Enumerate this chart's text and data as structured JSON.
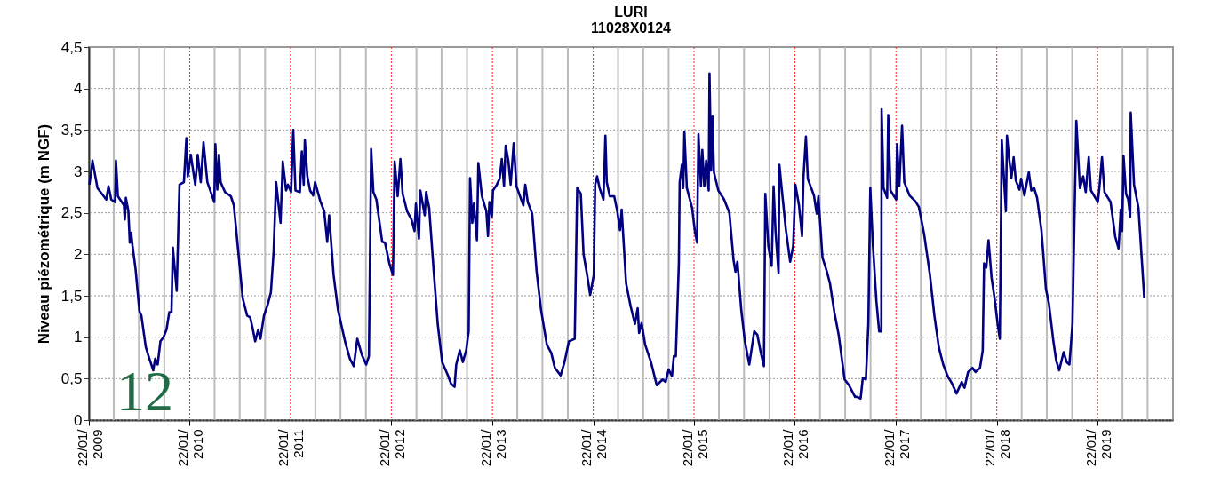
{
  "chart_data": {
    "type": "line",
    "title": "LURI",
    "subtitle": "11028X0124",
    "ylabel": "Niveau piézométrique (m NGF)",
    "annotations": [
      "12"
    ],
    "x": [
      "2009-01-24",
      "2009-02-04",
      "2009-02-22",
      "2009-03-26",
      "2009-04-03",
      "2009-04-13",
      "2009-04-27",
      "2009-04-30",
      "2009-05-07",
      "2009-05-29",
      "2009-06-01",
      "2009-06-05",
      "2009-06-14",
      "2009-06-19",
      "2009-06-24",
      "2009-06-29",
      "2009-07-10",
      "2009-07-24",
      "2009-07-31",
      "2009-08-16",
      "2009-08-29",
      "2009-09-12",
      "2009-09-19",
      "2009-09-28",
      "2009-10-08",
      "2009-10-19",
      "2009-10-30",
      "2009-11-09",
      "2009-11-17",
      "2009-11-22",
      "2009-12-06",
      "2009-12-16",
      "2010-01-01",
      "2010-01-10",
      "2010-01-15",
      "2010-01-26",
      "2010-02-11",
      "2010-02-20",
      "2010-03-03",
      "2010-03-13",
      "2010-03-27",
      "2010-04-21",
      "2010-04-25",
      "2010-05-02",
      "2010-05-08",
      "2010-05-14",
      "2010-05-30",
      "2010-06-20",
      "2010-07-01",
      "2010-07-17",
      "2010-08-02",
      "2010-08-18",
      "2010-08-29",
      "2010-09-08",
      "2010-09-16",
      "2010-09-27",
      "2010-10-05",
      "2010-10-18",
      "2010-11-01",
      "2010-11-12",
      "2010-11-22",
      "2010-12-01",
      "2010-12-17",
      "2010-12-25",
      "2011-01-06",
      "2011-01-13",
      "2011-01-24",
      "2011-02-01",
      "2011-02-09",
      "2011-02-25",
      "2011-03-04",
      "2011-03-11",
      "2011-03-15",
      "2011-03-24",
      "2011-04-03",
      "2011-04-14",
      "2011-04-21",
      "2011-05-10",
      "2011-05-24",
      "2011-06-04",
      "2011-06-11",
      "2011-06-27",
      "2011-07-13",
      "2011-07-29",
      "2011-08-09",
      "2011-08-25",
      "2011-09-08",
      "2011-09-21",
      "2011-10-07",
      "2011-10-23",
      "2011-11-02",
      "2011-11-10",
      "2011-11-18",
      "2011-11-29",
      "2011-12-20",
      "2011-12-30",
      "2012-01-15",
      "2012-01-28",
      "2012-02-03",
      "2012-02-14",
      "2012-02-24",
      "2012-03-03",
      "2012-03-19",
      "2012-04-04",
      "2012-04-15",
      "2012-04-20",
      "2012-05-01",
      "2012-05-06",
      "2012-05-22",
      "2012-05-27",
      "2012-06-07",
      "2012-06-23",
      "2012-07-08",
      "2012-07-24",
      "2012-08-15",
      "2012-08-25",
      "2012-09-07",
      "2012-09-13",
      "2012-09-26",
      "2012-10-07",
      "2012-10-19",
      "2012-10-28",
      "2012-11-02",
      "2012-11-10",
      "2012-11-16",
      "2012-11-27",
      "2012-12-02",
      "2012-12-15",
      "2012-12-31",
      "2013-01-06",
      "2013-01-11",
      "2013-01-20",
      "2013-01-24",
      "2013-02-07",
      "2013-02-17",
      "2013-02-25",
      "2013-03-05",
      "2013-03-11",
      "2013-03-21",
      "2013-03-29",
      "2013-04-09",
      "2013-04-19",
      "2013-05-14",
      "2013-05-21",
      "2013-05-30",
      "2013-06-15",
      "2013-07-01",
      "2013-07-17",
      "2013-08-07",
      "2013-08-23",
      "2013-09-05",
      "2013-09-26",
      "2013-10-10",
      "2013-10-26",
      "2013-11-16",
      "2013-11-25",
      "2013-12-08",
      "2013-12-18",
      "2013-12-31",
      "2014-01-11",
      "2014-01-24",
      "2014-01-29",
      "2014-02-05",
      "2014-02-14",
      "2014-02-28",
      "2014-03-07",
      "2014-03-12",
      "2014-03-23",
      "2014-04-08",
      "2014-04-19",
      "2014-04-29",
      "2014-05-05",
      "2014-05-21",
      "2014-06-06",
      "2014-06-22",
      "2014-07-02",
      "2014-07-07",
      "2014-07-16",
      "2014-07-29",
      "2014-08-19",
      "2014-09-09",
      "2014-09-30",
      "2014-10-11",
      "2014-10-22",
      "2014-11-03",
      "2014-11-10",
      "2014-11-17",
      "2014-11-28",
      "2014-12-01",
      "2014-12-09",
      "2014-12-14",
      "2014-12-18",
      "2014-12-27",
      "2015-01-15",
      "2015-01-25",
      "2015-02-02",
      "2015-02-07",
      "2015-02-16",
      "2015-02-21",
      "2015-02-28",
      "2015-03-07",
      "2015-03-16",
      "2015-03-19",
      "2015-03-25",
      "2015-03-30",
      "2015-04-04",
      "2015-04-20",
      "2015-05-11",
      "2015-05-30",
      "2015-06-14",
      "2015-06-21",
      "2015-06-28",
      "2015-07-12",
      "2015-07-25",
      "2015-08-10",
      "2015-08-28",
      "2015-09-08",
      "2015-09-21",
      "2015-10-02",
      "2015-10-07",
      "2015-10-18",
      "2015-10-30",
      "2015-11-06",
      "2015-11-13",
      "2015-11-24",
      "2015-11-27",
      "2015-12-04",
      "2015-12-20",
      "2016-01-05",
      "2016-01-16",
      "2016-01-24",
      "2016-02-06",
      "2016-02-17",
      "2016-02-22",
      "2016-03-02",
      "2016-03-09",
      "2016-03-31",
      "2016-04-10",
      "2016-04-16",
      "2016-05-01",
      "2016-05-17",
      "2016-05-28",
      "2016-06-13",
      "2016-06-29",
      "2016-07-20",
      "2016-08-05",
      "2016-08-27",
      "2016-09-03",
      "2016-09-16",
      "2016-09-24",
      "2016-10-05",
      "2016-10-14",
      "2016-10-21",
      "2016-10-30",
      "2016-11-12",
      "2016-11-22",
      "2016-11-30",
      "2016-12-01",
      "2016-12-08",
      "2016-12-21",
      "2016-12-25",
      "2017-01-02",
      "2017-01-23",
      "2017-01-26",
      "2017-02-03",
      "2017-02-13",
      "2017-02-21",
      "2017-03-12",
      "2017-04-02",
      "2017-04-15",
      "2017-05-04",
      "2017-05-25",
      "2017-06-10",
      "2017-06-26",
      "2017-07-12",
      "2017-07-28",
      "2017-08-13",
      "2017-08-29",
      "2017-09-17",
      "2017-09-27",
      "2017-10-10",
      "2017-10-26",
      "2017-11-06",
      "2017-11-22",
      "2017-12-02",
      "2017-12-07",
      "2017-12-15",
      "2017-12-23",
      "2018-01-03",
      "2018-01-14",
      "2018-01-25",
      "2018-02-02",
      "2018-02-09",
      "2018-02-17",
      "2018-02-24",
      "2018-02-28",
      "2018-03-08",
      "2018-03-16",
      "2018-03-24",
      "2018-04-01",
      "2018-04-14",
      "2018-04-20",
      "2018-05-02",
      "2018-05-18",
      "2018-05-27",
      "2018-06-06",
      "2018-06-17",
      "2018-07-03",
      "2018-07-19",
      "2018-07-30",
      "2018-08-15",
      "2018-08-25",
      "2018-09-05",
      "2018-09-21",
      "2018-10-02",
      "2018-10-12",
      "2018-10-23",
      "2018-11-06",
      "2018-11-19",
      "2018-12-01",
      "2018-12-10",
      "2018-12-21",
      "2018-12-29",
      "2019-01-23",
      "2019-01-29",
      "2019-02-07",
      "2019-02-16",
      "2019-03-10",
      "2019-03-27",
      "2019-04-08",
      "2019-04-16",
      "2019-04-21",
      "2019-04-26",
      "2019-05-05",
      "2019-05-13",
      "2019-05-20",
      "2019-05-22",
      "2019-06-03",
      "2019-06-19",
      "2019-07-10"
    ],
    "series": [
      {
        "color": "#000080",
        "values": [
          2.84,
          3.13,
          2.8,
          2.66,
          2.82,
          2.66,
          2.63,
          3.13,
          2.7,
          2.59,
          2.42,
          2.68,
          2.52,
          2.14,
          2.26,
          2.1,
          1.82,
          1.31,
          1.26,
          0.88,
          0.74,
          0.6,
          0.74,
          0.67,
          0.95,
          1.0,
          1.09,
          1.3,
          1.3,
          2.08,
          1.56,
          2.84,
          2.87,
          3.4,
          2.94,
          3.2,
          2.84,
          3.2,
          2.87,
          3.35,
          2.87,
          2.63,
          3.33,
          2.78,
          3.2,
          2.87,
          2.75,
          2.7,
          2.59,
          2.03,
          1.47,
          1.26,
          1.24,
          1.09,
          0.95,
          1.09,
          0.98,
          1.26,
          1.4,
          1.54,
          2.03,
          2.87,
          2.38,
          3.12,
          2.77,
          2.84,
          2.75,
          3.5,
          2.77,
          2.75,
          3.24,
          2.84,
          3.38,
          2.94,
          2.77,
          2.71,
          2.87,
          2.64,
          2.52,
          2.15,
          2.47,
          1.75,
          1.33,
          1.09,
          0.93,
          0.74,
          0.65,
          0.98,
          0.79,
          0.67,
          0.77,
          3.27,
          2.75,
          2.66,
          2.15,
          2.14,
          1.89,
          1.75,
          3.12,
          2.7,
          3.15,
          2.73,
          2.52,
          2.42,
          2.28,
          2.61,
          2.19,
          2.77,
          2.47,
          2.75,
          2.56,
          1.82,
          1.16,
          0.7,
          0.53,
          0.44,
          0.4,
          0.67,
          0.84,
          0.7,
          0.84,
          1.07,
          2.92,
          2.38,
          2.61,
          2.17,
          3.1,
          2.7,
          2.52,
          2.22,
          2.63,
          2.45,
          2.77,
          2.84,
          2.91,
          3.15,
          2.82,
          3.31,
          3.12,
          2.84,
          3.34,
          2.82,
          2.59,
          2.84,
          2.63,
          2.49,
          1.79,
          1.33,
          0.91,
          0.81,
          0.63,
          0.54,
          0.7,
          0.95,
          0.98,
          2.8,
          2.73,
          2.0,
          1.75,
          1.51,
          1.75,
          2.84,
          2.94,
          2.8,
          2.66,
          3.43,
          2.87,
          2.7,
          2.7,
          2.52,
          2.29,
          2.54,
          1.65,
          1.38,
          1.16,
          1.35,
          1.05,
          1.17,
          0.91,
          0.7,
          0.42,
          0.49,
          0.46,
          0.61,
          0.53,
          0.77,
          0.77,
          1.89,
          2.87,
          3.08,
          2.8,
          3.48,
          2.8,
          2.56,
          2.28,
          2.14,
          3.45,
          2.82,
          3.26,
          2.82,
          3.13,
          2.77,
          4.18,
          3.01,
          3.66,
          2.99,
          2.77,
          2.66,
          2.5,
          1.93,
          1.79,
          1.91,
          1.33,
          0.95,
          0.67,
          1.07,
          1.03,
          0.81,
          0.65,
          2.73,
          2.1,
          1.86,
          2.82,
          2.28,
          1.77,
          3.08,
          2.84,
          2.31,
          1.91,
          2.1,
          2.84,
          2.59,
          2.22,
          2.92,
          3.42,
          2.91,
          2.71,
          2.49,
          2.7,
          1.96,
          1.79,
          1.65,
          1.3,
          1.02,
          0.49,
          0.42,
          0.28,
          0.28,
          0.26,
          0.51,
          0.49,
          1.16,
          2.8,
          2.14,
          1.44,
          1.07,
          1.07,
          3.75,
          2.8,
          2.68,
          3.68,
          2.77,
          2.66,
          3.33,
          2.82,
          3.55,
          2.87,
          2.71,
          2.64,
          2.57,
          2.24,
          1.75,
          1.26,
          0.88,
          0.67,
          0.53,
          0.44,
          0.32,
          0.46,
          0.39,
          0.58,
          0.63,
          0.58,
          0.63,
          0.84,
          1.89,
          1.84,
          2.17,
          1.72,
          1.47,
          1.16,
          0.98,
          3.38,
          2.91,
          2.52,
          3.43,
          3.15,
          2.92,
          3.17,
          2.89,
          2.78,
          2.91,
          2.71,
          2.99,
          2.77,
          2.8,
          2.68,
          2.28,
          1.58,
          1.4,
          0.95,
          0.72,
          0.6,
          0.82,
          0.7,
          0.67,
          1.16,
          3.61,
          2.8,
          2.94,
          2.75,
          3.17,
          2.77,
          2.63,
          2.82,
          3.17,
          2.75,
          2.63,
          2.21,
          2.07,
          2.54,
          2.28,
          3.19,
          2.73,
          2.66,
          2.45,
          3.71,
          2.84,
          2.56,
          1.47
        ]
      }
    ],
    "xlim": [
      "2009-01-22",
      "2019-10-22"
    ],
    "xticks": [
      {
        "value": "2009-01-22",
        "label": "22/01/2009"
      },
      {
        "value": "2009-04-22",
        "label": null
      },
      {
        "value": "2009-07-22",
        "label": null
      },
      {
        "value": "2009-10-22",
        "label": null
      },
      {
        "value": "2010-01-22",
        "label": "22/01/2010"
      },
      {
        "value": "2010-04-22",
        "label": null
      },
      {
        "value": "2010-07-22",
        "label": null
      },
      {
        "value": "2010-10-22",
        "label": null
      },
      {
        "value": "2011-01-22",
        "label": "22/01/2011"
      },
      {
        "value": "2011-04-22",
        "label": null
      },
      {
        "value": "2011-07-22",
        "label": null
      },
      {
        "value": "2011-10-22",
        "label": null
      },
      {
        "value": "2012-01-22",
        "label": "22/01/2012"
      },
      {
        "value": "2012-04-22",
        "label": null
      },
      {
        "value": "2012-07-22",
        "label": null
      },
      {
        "value": "2012-10-22",
        "label": null
      },
      {
        "value": "2013-01-22",
        "label": "22/01/2013"
      },
      {
        "value": "2013-04-22",
        "label": null
      },
      {
        "value": "2013-07-22",
        "label": null
      },
      {
        "value": "2013-10-22",
        "label": null
      },
      {
        "value": "2014-01-22",
        "label": "22/01/2014"
      },
      {
        "value": "2014-04-22",
        "label": null
      },
      {
        "value": "2014-07-22",
        "label": null
      },
      {
        "value": "2014-10-22",
        "label": null
      },
      {
        "value": "2015-01-22",
        "label": "22/01/2015"
      },
      {
        "value": "2015-04-22",
        "label": null
      },
      {
        "value": "2015-07-22",
        "label": null
      },
      {
        "value": "2015-10-22",
        "label": null
      },
      {
        "value": "2016-01-22",
        "label": "22/01/2016"
      },
      {
        "value": "2016-04-22",
        "label": null
      },
      {
        "value": "2016-07-22",
        "label": null
      },
      {
        "value": "2016-10-22",
        "label": null
      },
      {
        "value": "2017-01-22",
        "label": "22/01/2017"
      },
      {
        "value": "2017-04-22",
        "label": null
      },
      {
        "value": "2017-07-22",
        "label": null
      },
      {
        "value": "2017-10-22",
        "label": null
      },
      {
        "value": "2018-01-22",
        "label": "22/01/2018"
      },
      {
        "value": "2018-04-22",
        "label": null
      },
      {
        "value": "2018-07-22",
        "label": null
      },
      {
        "value": "2018-10-22",
        "label": null
      },
      {
        "value": "2019-01-22",
        "label": "22/01/2019"
      },
      {
        "value": "2019-04-22",
        "label": null
      },
      {
        "value": "2019-07-22",
        "label": null
      }
    ],
    "ylim": [
      0,
      4.5
    ],
    "yticks": [
      0,
      {
        "value": 0.5,
        "label": "0,5"
      },
      1,
      {
        "value": 1.5,
        "label": "1,5"
      },
      2,
      {
        "value": 2.5,
        "label": "2,5"
      },
      3,
      {
        "value": 3.5,
        "label": "3,5"
      },
      4,
      {
        "value": 4.5,
        "label": "4,5"
      }
    ],
    "grid": true
  }
}
